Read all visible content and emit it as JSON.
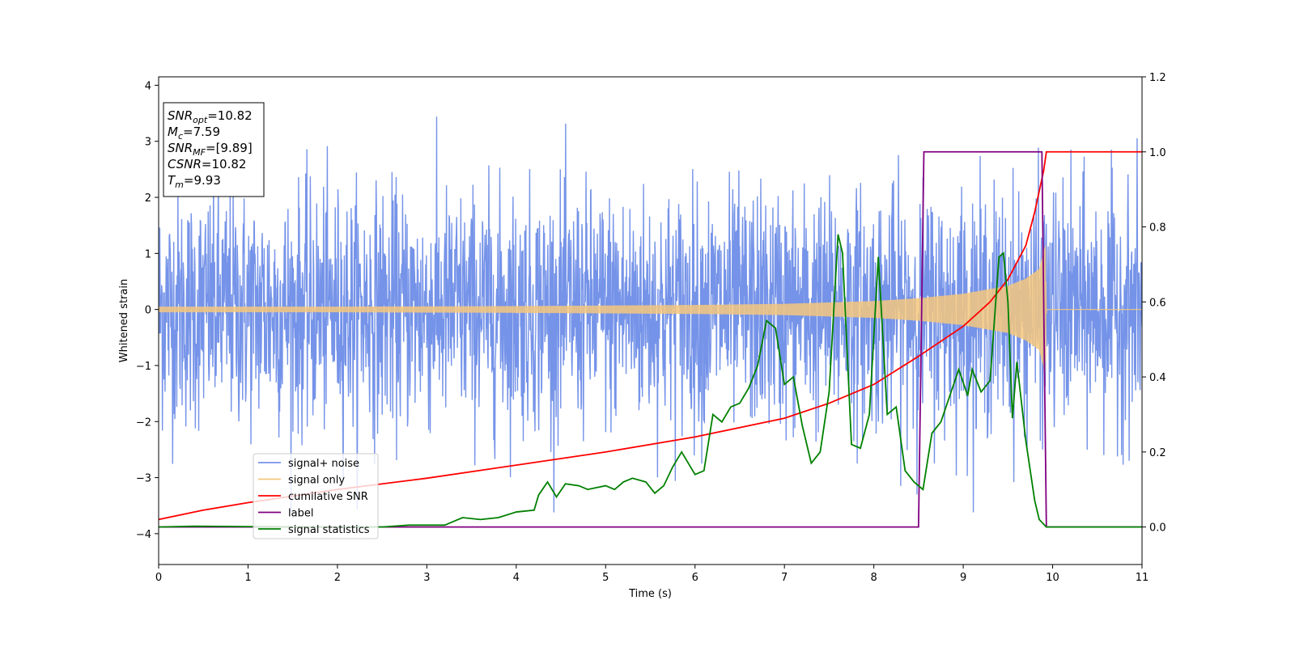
{
  "chart_data": {
    "type": "line",
    "xlabel": "Time (s)",
    "ylabel": "Whitened strain",
    "xlim": [
      0,
      11
    ],
    "ylim": [
      -4.55,
      4.15
    ],
    "y2lim": [
      -0.1,
      1.2
    ],
    "xticks": [
      0,
      1,
      2,
      3,
      4,
      5,
      6,
      7,
      8,
      9,
      10,
      11
    ],
    "yticks": [
      -4,
      -3,
      -2,
      -1,
      0,
      1,
      2,
      3,
      4
    ],
    "y2ticks": [
      0.0,
      0.2,
      0.4,
      0.6,
      0.8,
      1.0,
      1.2
    ],
    "xtick_labels": [
      "0",
      "1",
      "2",
      "3",
      "4",
      "5",
      "6",
      "7",
      "8",
      "9",
      "10",
      "11"
    ],
    "ytick_labels": [
      "−4",
      "−3",
      "−2",
      "−1",
      "0",
      "1",
      "2",
      "3",
      "4"
    ],
    "y2tick_labels": [
      "0.0",
      "0.2",
      "0.4",
      "0.6",
      "0.8",
      "1.0",
      "1.2"
    ],
    "grid": false,
    "legend_position": "lower-left",
    "annotation": {
      "lines": [
        {
          "base": "SNR",
          "sub": "opt",
          "rest": "=10.82"
        },
        {
          "base": "M",
          "sub": "c",
          "rest": "=7.59"
        },
        {
          "base": "SNR",
          "sub": "MF",
          "rest": "=[9.89]"
        },
        {
          "base": "CSNR",
          "sub": "",
          "rest": "=10.82"
        },
        {
          "base": "T",
          "sub": "m",
          "rest": "=9.93"
        }
      ]
    },
    "series": [
      {
        "name": "signal+ noise",
        "axis": "left",
        "color": "#7593e8",
        "kind": "noise-envelope",
        "description_points": {
          "x": [
            0,
            11
          ],
          "upper_typical": 2.3,
          "lower_typical": -2.3,
          "max": 3.75,
          "min": -3.62
        }
      },
      {
        "name": "signal only",
        "axis": "left",
        "color": "#f5c77e",
        "kind": "chirp",
        "amplitude_x": [
          0,
          2,
          4,
          6,
          7,
          8,
          8.5,
          9,
          9.5,
          9.7,
          9.85,
          9.92,
          9.93,
          11
        ],
        "amplitude_y": [
          0.05,
          0.05,
          0.06,
          0.08,
          0.1,
          0.15,
          0.2,
          0.28,
          0.42,
          0.55,
          0.72,
          1.15,
          0.0,
          0.0
        ]
      },
      {
        "name": "cumilative SNR",
        "axis": "right",
        "color": "#ff0000",
        "x": [
          0,
          0.5,
          1,
          2,
          3,
          4,
          5,
          6,
          7,
          7.5,
          8,
          8.5,
          9,
          9.3,
          9.5,
          9.7,
          9.8,
          9.9,
          9.93,
          11
        ],
        "y": [
          0.02,
          0.045,
          0.065,
          0.1,
          0.13,
          0.165,
          0.2,
          0.24,
          0.29,
          0.33,
          0.38,
          0.455,
          0.535,
          0.6,
          0.66,
          0.75,
          0.84,
          0.95,
          1.0,
          1.0
        ]
      },
      {
        "name": "label",
        "axis": "right",
        "color": "#800080",
        "x": [
          0,
          8.5,
          8.56,
          9.88,
          9.93,
          11
        ],
        "y": [
          0,
          0,
          1,
          1,
          0,
          0
        ]
      },
      {
        "name": "signal statistics",
        "axis": "right",
        "color": "#008000",
        "x": [
          0,
          0.4,
          1,
          2,
          2.5,
          2.8,
          3.2,
          3.3,
          3.4,
          3.6,
          3.8,
          4.0,
          4.2,
          4.25,
          4.35,
          4.45,
          4.55,
          4.7,
          4.8,
          4.9,
          5.0,
          5.1,
          5.2,
          5.3,
          5.45,
          5.55,
          5.65,
          5.75,
          5.85,
          6.0,
          6.1,
          6.2,
          6.3,
          6.4,
          6.5,
          6.6,
          6.7,
          6.8,
          6.9,
          7.0,
          7.1,
          7.2,
          7.3,
          7.4,
          7.5,
          7.6,
          7.65,
          7.75,
          7.85,
          7.95,
          8.05,
          8.15,
          8.25,
          8.35,
          8.45,
          8.55,
          8.65,
          8.75,
          8.85,
          8.95,
          9.05,
          9.1,
          9.2,
          9.3,
          9.4,
          9.45,
          9.5,
          9.55,
          9.6,
          9.7,
          9.8,
          9.85,
          9.93,
          10.2,
          11
        ],
        "y": [
          0.0,
          0.002,
          0.001,
          0.0,
          0.0,
          0.005,
          0.005,
          0.015,
          0.025,
          0.02,
          0.025,
          0.04,
          0.045,
          0.085,
          0.12,
          0.08,
          0.115,
          0.11,
          0.1,
          0.105,
          0.11,
          0.1,
          0.12,
          0.13,
          0.12,
          0.09,
          0.11,
          0.16,
          0.2,
          0.14,
          0.15,
          0.3,
          0.28,
          0.32,
          0.33,
          0.37,
          0.43,
          0.55,
          0.53,
          0.38,
          0.4,
          0.27,
          0.17,
          0.2,
          0.36,
          0.78,
          0.73,
          0.22,
          0.21,
          0.3,
          0.72,
          0.3,
          0.32,
          0.15,
          0.12,
          0.1,
          0.25,
          0.28,
          0.35,
          0.42,
          0.35,
          0.42,
          0.36,
          0.39,
          0.72,
          0.73,
          0.6,
          0.29,
          0.44,
          0.23,
          0.07,
          0.02,
          0.0,
          0.0,
          0.0
        ]
      }
    ]
  }
}
